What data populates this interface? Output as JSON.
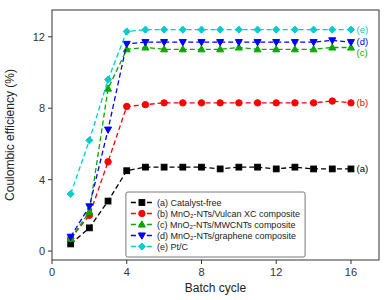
{
  "chart_data": {
    "type": "line",
    "xlabel": "Batch cycle",
    "ylabel": "Coulombic efficiency (%)",
    "xlim": [
      0,
      17.5
    ],
    "ylim": [
      -0.5,
      13.5
    ],
    "xticks": [
      0,
      4,
      8,
      12,
      16
    ],
    "yticks": [
      0,
      4,
      8,
      12
    ],
    "grid": false,
    "legend": "lower center",
    "x": [
      1,
      2,
      3,
      4,
      5,
      6,
      7,
      8,
      9,
      10,
      11,
      12,
      13,
      14,
      15,
      16
    ],
    "series": [
      {
        "name": "(a) Catalyst-free",
        "color": "#000000",
        "marker": "square",
        "line_style": "dashed",
        "values": [
          0.4,
          1.3,
          2.8,
          4.5,
          4.7,
          4.7,
          4.7,
          4.7,
          4.6,
          4.7,
          4.7,
          4.6,
          4.7,
          4.6,
          4.6,
          4.6
        ]
      },
      {
        "name": "(b) MnO₂-NTs/Vulcan XC composite",
        "color": "#ff0000",
        "marker": "circle",
        "line_style": "dashed",
        "values": [
          0.7,
          2.0,
          5.0,
          8.1,
          8.2,
          8.3,
          8.3,
          8.3,
          8.3,
          8.3,
          8.3,
          8.3,
          8.3,
          8.3,
          8.4,
          8.3
        ]
      },
      {
        "name": "(c) MnO₂-NTs/MWCNTs composite",
        "color": "#00aa00",
        "marker": "triangle-up",
        "line_style": "dashed",
        "values": [
          0.7,
          2.2,
          9.1,
          11.3,
          11.4,
          11.3,
          11.3,
          11.3,
          11.3,
          11.4,
          11.3,
          11.3,
          11.3,
          11.3,
          11.4,
          11.4
        ]
      },
      {
        "name": "(d) MnO₂-NTs/graphene composite",
        "color": "#0000ff",
        "marker": "triangle-down",
        "line_style": "dashed",
        "values": [
          0.8,
          2.5,
          6.8,
          11.6,
          11.7,
          11.7,
          11.7,
          11.7,
          11.7,
          11.7,
          11.7,
          11.7,
          11.7,
          11.7,
          11.8,
          11.7
        ]
      },
      {
        "name": "(e) Pt/C",
        "color": "#00cccc",
        "marker": "diamond",
        "line_style": "dashed",
        "values": [
          3.2,
          6.2,
          9.6,
          12.3,
          12.4,
          12.4,
          12.4,
          12.4,
          12.4,
          12.4,
          12.4,
          12.4,
          12.4,
          12.4,
          12.4,
          12.4
        ]
      }
    ],
    "annotations": [
      {
        "text": "(e)",
        "x": 16.3,
        "y": 12.4,
        "color": "#00cccc"
      },
      {
        "text": "(d)",
        "x": 16.3,
        "y": 11.7,
        "color": "#0000ff"
      },
      {
        "text": "(c)",
        "x": 16.3,
        "y": 11.1,
        "color": "#00aa00"
      },
      {
        "text": "(b)",
        "x": 16.3,
        "y": 8.3,
        "color": "#ff0000"
      },
      {
        "text": "(a)",
        "x": 16.3,
        "y": 4.6,
        "color": "#000000"
      }
    ]
  }
}
